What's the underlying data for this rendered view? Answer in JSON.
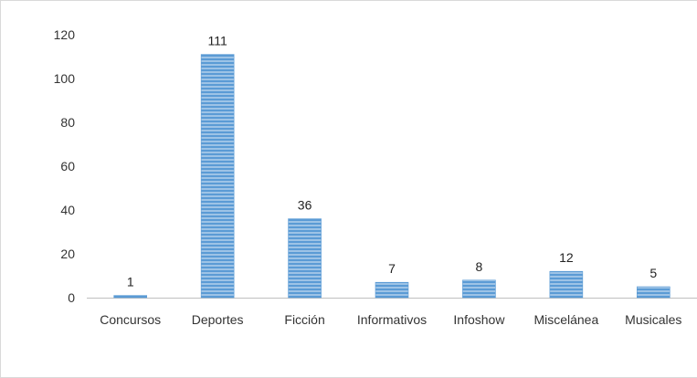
{
  "chart_data": {
    "type": "bar",
    "title": "",
    "xlabel": "",
    "ylabel": "",
    "categories": [
      "Concursos",
      "Deportes",
      "Ficción",
      "Informativos",
      "Infoshow",
      "Miscelánea",
      "Musicales"
    ],
    "values": [
      1,
      111,
      36,
      7,
      8,
      12,
      5
    ],
    "data_labels": [
      "1",
      "111",
      "36",
      "7",
      "8",
      "12",
      "5"
    ],
    "y_ticks": [
      0,
      20,
      40,
      60,
      80,
      100,
      120
    ],
    "y_tick_labels": [
      "0",
      "20",
      "40",
      "60",
      "80",
      "100",
      "120"
    ],
    "ylim": [
      0,
      120
    ],
    "grid": false,
    "legend": "none",
    "colors": {
      "bar_fill": "#9dc3e6",
      "bar_stripe": "#5b9bd5",
      "axis": "#bfbfbf",
      "frame": "#d9d9d9",
      "text": "#333333"
    }
  }
}
